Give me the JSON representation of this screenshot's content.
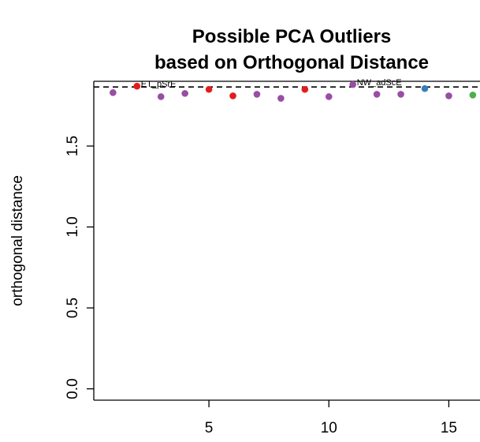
{
  "chart_data": {
    "type": "scatter",
    "title": "Possible PCA Outliers",
    "subtitle": "based on Orthogonal Distance",
    "xlabel": "",
    "ylabel": "orthogonal distance",
    "xlim": [
      0.2,
      16.3
    ],
    "ylim": [
      -0.07,
      1.9
    ],
    "x_ticks": [
      5,
      10,
      15
    ],
    "y_ticks": [
      0.0,
      0.5,
      1.0,
      1.5
    ],
    "threshold": 1.865,
    "grid": false,
    "points": [
      {
        "x": 1,
        "y": 1.83,
        "color": "#984EA3"
      },
      {
        "x": 2,
        "y": 1.87,
        "color": "#E41A1C",
        "label": "ET_pSrE"
      },
      {
        "x": 3,
        "y": 1.805,
        "color": "#984EA3"
      },
      {
        "x": 4,
        "y": 1.825,
        "color": "#984EA3"
      },
      {
        "x": 5,
        "y": 1.85,
        "color": "#E41A1C"
      },
      {
        "x": 6,
        "y": 1.81,
        "color": "#E41A1C"
      },
      {
        "x": 7,
        "y": 1.82,
        "color": "#984EA3"
      },
      {
        "x": 8,
        "y": 1.795,
        "color": "#984EA3"
      },
      {
        "x": 9,
        "y": 1.85,
        "color": "#E41A1C"
      },
      {
        "x": 10,
        "y": 1.805,
        "color": "#984EA3"
      },
      {
        "x": 11,
        "y": 1.88,
        "color": "#984EA3",
        "label": "NW_adScE"
      },
      {
        "x": 12,
        "y": 1.82,
        "color": "#984EA3"
      },
      {
        "x": 13,
        "y": 1.82,
        "color": "#984EA3"
      },
      {
        "x": 14,
        "y": 1.855,
        "color": "#377EB8"
      },
      {
        "x": 15,
        "y": 1.81,
        "color": "#984EA3"
      },
      {
        "x": 16,
        "y": 1.815,
        "color": "#4DAF4A"
      }
    ]
  }
}
